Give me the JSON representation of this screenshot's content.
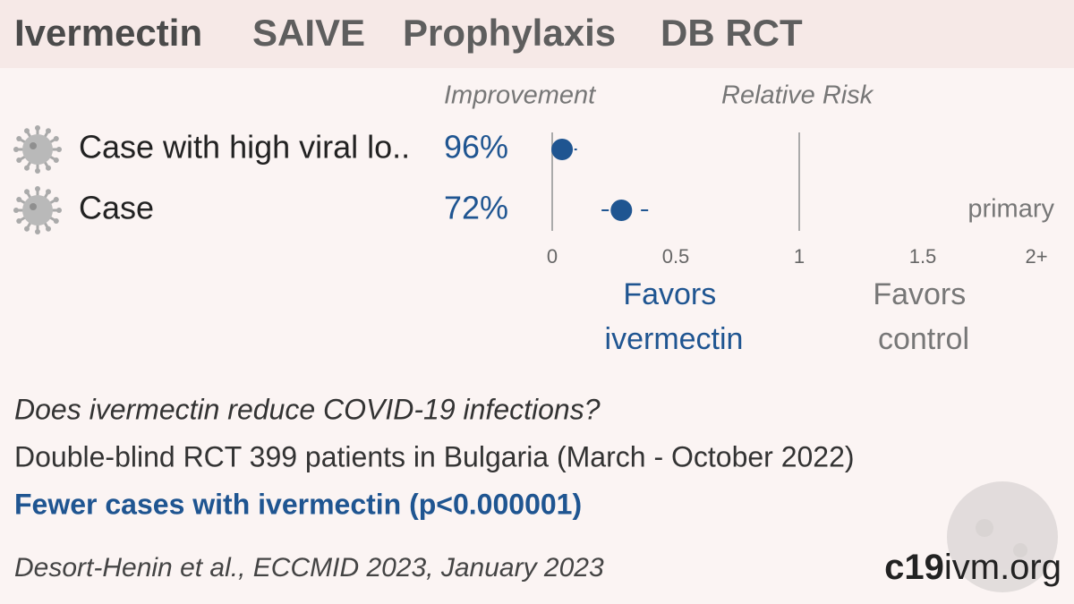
{
  "title": [
    "Ivermectin",
    "SAIVE",
    "Prophylaxis",
    "DB RCT"
  ],
  "chart_data": {
    "type": "forest",
    "column_titles": {
      "improvement": "Improvement",
      "effect": "Relative Risk"
    },
    "categories": [
      "Case with high viral lo..",
      "Case"
    ],
    "improvement": [
      96,
      72
    ],
    "improvement_labels": [
      "96%",
      "72%"
    ],
    "values": [
      0.04,
      0.28
    ],
    "ci_low": [
      0.01,
      0.2
    ],
    "ci_high": [
      0.1,
      0.4
    ],
    "xlim": [
      0,
      2
    ],
    "xticks": [
      0,
      0.5,
      1,
      1.5,
      {
        "value": 2,
        "label": "2+"
      }
    ],
    "reference": 1,
    "annotation": "primary",
    "favors_left": [
      "Favors",
      "ivermectin"
    ],
    "favors_right": [
      "Favors",
      "control"
    ],
    "color": "#1f5591"
  },
  "question": "Does ivermectin reduce COVID-19 infections?",
  "description": "Double-blind RCT 399 patients in Bulgaria (March - October 2022)",
  "conclusion": "Fewer cases with ivermectin (p<0.000001)",
  "citation": "Desort-Henin et al., ECCMID 2023, January 2023",
  "brand": [
    "c19",
    "ivm.org"
  ]
}
